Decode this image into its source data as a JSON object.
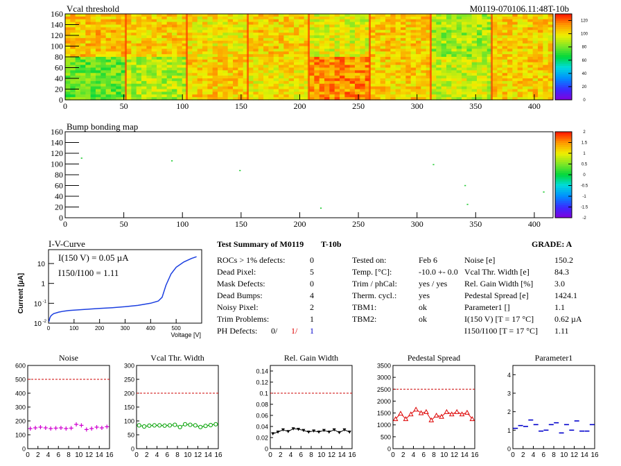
{
  "header": {
    "top_title": "Vcal threshold",
    "module_id": "M0119-070106.11:48T-10b",
    "bump_title": "Bump bonding map"
  },
  "palette": {
    "heatmap_high": "#ff2a00",
    "heatmap_mid": "#f6e600",
    "heatmap_low": "#1a7cff",
    "noise_color": "#d000d0",
    "vcal_color": "#00a000",
    "gain_color": "#000000",
    "ped_color": "#dd0000",
    "param_color": "#0000cc",
    "limit_color": "#cc0000",
    "iv_color": "#1a3ee0"
  },
  "summary": {
    "title": "Test Summary of M0119",
    "tag": "T-10b",
    "grade": "GRADE:  A",
    "left_rows": [
      {
        "label": "ROCs > 1% defects:",
        "value": "0"
      },
      {
        "label": "Dead Pixel:",
        "value": "5"
      },
      {
        "label": "Mask Defects:",
        "value": "0"
      },
      {
        "label": "Dead Bumps:",
        "value": "4"
      },
      {
        "label": "Noisy Pixel:",
        "value": "2"
      },
      {
        "label": "Trim Problems:",
        "value": "1"
      }
    ],
    "ph_label": "PH Defects:",
    "ph_values": [
      "0/",
      "1/",
      "1"
    ],
    "mid_rows": [
      {
        "label": "Tested on:",
        "value": "Feb 6"
      },
      {
        "label": "Temp. [°C]:",
        "value": "-10.0 +- 0.0"
      },
      {
        "label": "Trim / phCal:",
        "value": "yes / yes"
      },
      {
        "label": "Therm. cycl.:",
        "value": "yes"
      },
      {
        "label": "TBM1:",
        "value": "ok"
      },
      {
        "label": "TBM2:",
        "value": "ok"
      }
    ],
    "right_rows": [
      {
        "label": "Noise [e]",
        "value": "150.2"
      },
      {
        "label": "Vcal Thr. Width [e]",
        "value": "84.3"
      },
      {
        "label": "Rel. Gain Width [%]",
        "value": "3.0"
      },
      {
        "label": "Pedestal Spread [e]",
        "value": "1424.1"
      },
      {
        "label": "Parameter1 []",
        "value": "1.1"
      },
      {
        "label": "I(150 V)  [T = 17 °C]",
        "value": "0.62 µA"
      },
      {
        "label": "I150/I100  [T = 17 °C]",
        "value": "1.11"
      }
    ]
  },
  "chart_data": [
    {
      "type": "heatmap",
      "title": "Vcal threshold",
      "xlim": [
        0,
        416
      ],
      "ylim": [
        0,
        160
      ],
      "xticks": [
        "0",
        "50",
        "100",
        "150",
        "200",
        "250",
        "300",
        "350",
        "400"
      ],
      "yticks": [
        "0",
        "20",
        "40",
        "60",
        "80",
        "100",
        "120",
        "140",
        "160"
      ],
      "zlim": [
        0,
        130
      ],
      "zticks": [
        "0",
        "20",
        "40",
        "60",
        "80",
        "100",
        "120"
      ],
      "roc_means_top": [
        106,
        104,
        100,
        104,
        95,
        104,
        86,
        104
      ],
      "roc_means_bottom": [
        78,
        88,
        104,
        100,
        114,
        104,
        92,
        104
      ]
    },
    {
      "type": "scatter",
      "title": "Bump bonding map",
      "xlim": [
        0,
        416
      ],
      "ylim": [
        0,
        160
      ],
      "xticks": [
        "0",
        "50",
        "100",
        "150",
        "200",
        "250",
        "300",
        "350",
        "400"
      ],
      "yticks": [
        "0",
        "20",
        "40",
        "60",
        "80",
        "100",
        "120",
        "140",
        "160"
      ],
      "zlim": [
        -2,
        2
      ],
      "zticks": [
        "-2",
        "-1.5",
        "-1",
        "-0.5",
        "0",
        "0.5",
        "1",
        "1.5",
        "2"
      ],
      "points": [
        [
          14,
          111
        ],
        [
          91,
          106
        ],
        [
          149,
          88
        ],
        [
          218,
          18
        ],
        [
          314,
          99
        ],
        [
          341,
          60
        ],
        [
          343,
          25
        ],
        [
          408,
          48
        ]
      ]
    },
    {
      "type": "line",
      "title": "I-V-Curve",
      "xlabel": "Voltage [V]",
      "ylabel": "Current [µA]",
      "xlim": [
        0,
        600
      ],
      "ylim": [
        0.01,
        50
      ],
      "ylog": true,
      "xticks": [
        "0",
        "100",
        "200",
        "300",
        "400",
        "500"
      ],
      "annotation1": "I(150 V) = 0.05 µA",
      "annotation2": "I150/I100 =  1.11",
      "x": [
        2,
        5,
        10,
        20,
        40,
        60,
        80,
        100,
        150,
        200,
        250,
        300,
        350,
        400,
        430,
        445,
        460,
        480,
        500,
        530,
        560,
        580
      ],
      "y": [
        0.012,
        0.018,
        0.024,
        0.03,
        0.036,
        0.04,
        0.043,
        0.045,
        0.05,
        0.055,
        0.06,
        0.067,
        0.078,
        0.1,
        0.13,
        0.2,
        0.8,
        3.0,
        6.5,
        12,
        18,
        22
      ]
    },
    {
      "type": "scatter",
      "title": "Noise",
      "ylim": [
        0,
        600
      ],
      "xlim": [
        0,
        16
      ],
      "yticks": [
        "0",
        "100",
        "200",
        "300",
        "400",
        "500",
        "600"
      ],
      "xticks": [
        "0",
        "2",
        "4",
        "6",
        "8",
        "10",
        "12",
        "14",
        "16"
      ],
      "limit": 500,
      "marker": "plus",
      "values": [
        145,
        150,
        155,
        150,
        145,
        148,
        150,
        145,
        148,
        175,
        168,
        138,
        145,
        155,
        150,
        158
      ]
    },
    {
      "type": "line",
      "title": "Vcal Thr. Width",
      "ylim": [
        0,
        300
      ],
      "xlim": [
        0,
        16
      ],
      "yticks": [
        "0",
        "50",
        "100",
        "150",
        "200",
        "250",
        "300"
      ],
      "xticks": [
        "0",
        "2",
        "4",
        "6",
        "8",
        "10",
        "12",
        "14",
        "16"
      ],
      "limit": 200,
      "marker": "circle",
      "values": [
        84,
        80,
        83,
        84,
        84,
        83,
        84,
        86,
        78,
        88,
        86,
        84,
        78,
        82,
        85,
        88
      ]
    },
    {
      "type": "line",
      "title": "Rel. Gain Width",
      "ylim": [
        0,
        0.15
      ],
      "xlim": [
        0,
        16
      ],
      "yticks": [
        "0",
        "0.02",
        "0.04",
        "0.06",
        "0.08",
        "0.1",
        "0.12",
        "0.14"
      ],
      "xticks": [
        "0",
        "2",
        "4",
        "6",
        "8",
        "10",
        "12",
        "14",
        "16"
      ],
      "limit": 0.1,
      "marker": "triangle-down",
      "values": [
        0.027,
        0.03,
        0.034,
        0.031,
        0.036,
        0.035,
        0.033,
        0.03,
        0.032,
        0.03,
        0.033,
        0.03,
        0.034,
        0.029,
        0.034,
        0.03
      ]
    },
    {
      "type": "line",
      "title": "Pedestal Spread",
      "ylim": [
        0,
        3500
      ],
      "xlim": [
        0,
        16
      ],
      "yticks": [
        "0",
        "500",
        "1000",
        "1500",
        "2000",
        "2500",
        "3000",
        "3500"
      ],
      "xticks": [
        "0",
        "2",
        "4",
        "6",
        "8",
        "10",
        "12",
        "14",
        "16"
      ],
      "limit": 2500,
      "marker": "triangle-up",
      "values": [
        1250,
        1480,
        1250,
        1450,
        1650,
        1500,
        1550,
        1200,
        1400,
        1350,
        1550,
        1450,
        1550,
        1450,
        1520,
        1250
      ]
    },
    {
      "type": "scatter",
      "title": "Parameter1",
      "ylim": [
        0,
        4.5
      ],
      "xlim": [
        0,
        16
      ],
      "yticks": [
        "0",
        "1",
        "2",
        "3",
        "4"
      ],
      "xticks": [
        "0",
        "2",
        "4",
        "6",
        "8",
        "10",
        "12",
        "14",
        "16"
      ],
      "marker": "hbar",
      "values": [
        1.1,
        1.25,
        1.2,
        1.55,
        1.3,
        0.95,
        1.0,
        1.3,
        1.4,
        0.85,
        1.3,
        1.0,
        1.5,
        0.95,
        0.95,
        1.3
      ]
    }
  ]
}
